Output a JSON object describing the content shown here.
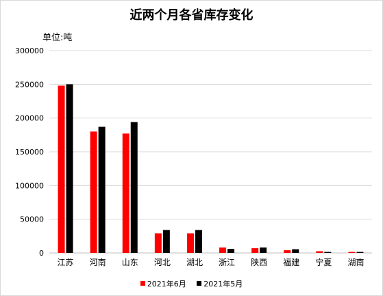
{
  "chart_data": {
    "type": "bar",
    "title": "近两个月各省库存变化",
    "unit_label": "单位:吨",
    "categories": [
      "江苏",
      "河南",
      "山东",
      "河北",
      "湖北",
      "浙江",
      "陕西",
      "福建",
      "宁夏",
      "湖南"
    ],
    "series": [
      {
        "name": "2021年6月",
        "color": "#ff0000",
        "values": [
          248000,
          180000,
          177000,
          29000,
          29000,
          8000,
          7000,
          4000,
          2500,
          1500
        ]
      },
      {
        "name": "2021年5月",
        "color": "#000000",
        "values": [
          250000,
          187000,
          194000,
          34000,
          34000,
          6000,
          8000,
          5500,
          1500,
          1500
        ]
      }
    ],
    "ylim": [
      0,
      300000
    ],
    "yticks": [
      "0",
      "50000",
      "100000",
      "150000",
      "200000",
      "250000",
      "300000"
    ],
    "grid": true,
    "legend_position": "bottom"
  }
}
